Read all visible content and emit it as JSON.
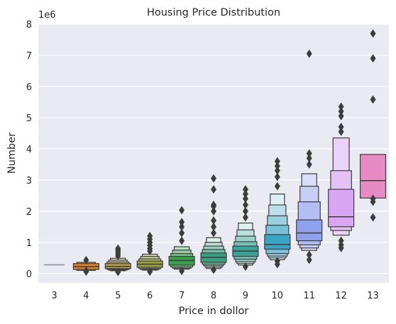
{
  "chart_data": {
    "type": "boxen",
    "title": "Housing Price Distribution",
    "xlabel": "Price in dollor",
    "ylabel": "Number",
    "y_multiplier": "1e6",
    "ylim": [
      -0.3,
      8.0
    ],
    "yticks": [
      0,
      1,
      2,
      3,
      4,
      5,
      6,
      7,
      8
    ],
    "grid": true,
    "background": "#eaeaf2",
    "categories": [
      "3",
      "4",
      "5",
      "6",
      "7",
      "8",
      "9",
      "10",
      "11",
      "12",
      "13"
    ],
    "series": [
      {
        "category": "3",
        "color": "#8c8c8c",
        "median": 0.28,
        "boxes": [],
        "outliers": []
      },
      {
        "category": "4",
        "color": "#e1812c",
        "median": 0.22,
        "boxes": [
          [
            0.13,
            0.32
          ],
          [
            0.1,
            0.36
          ]
        ],
        "outliers": [
          0.43,
          0.09,
          0.06
        ]
      },
      {
        "category": "5",
        "color": "#b8a04a",
        "median": 0.23,
        "boxes": [
          [
            0.16,
            0.32
          ],
          [
            0.13,
            0.37
          ],
          [
            0.11,
            0.43
          ],
          [
            0.09,
            0.49
          ]
        ],
        "outliers": [
          0.56,
          0.62,
          0.68,
          0.74,
          0.8,
          0.05
        ]
      },
      {
        "category": "6",
        "color": "#9aa13b",
        "median": 0.3,
        "boxes": [
          [
            0.2,
            0.4
          ],
          [
            0.16,
            0.47
          ],
          [
            0.13,
            0.55
          ],
          [
            0.11,
            0.62
          ]
        ],
        "outliers": [
          0.72,
          0.8,
          0.9,
          1.0,
          1.1,
          1.2,
          0.06
        ]
      },
      {
        "category": "7",
        "color": "#3a9e4d",
        "median": 0.42,
        "boxes": [
          [
            0.27,
            0.55
          ],
          [
            0.21,
            0.64
          ],
          [
            0.17,
            0.75
          ],
          [
            0.14,
            0.86
          ]
        ],
        "outliers": [
          1.05,
          1.3,
          1.5,
          1.65,
          2.03,
          0.08
        ]
      },
      {
        "category": "8",
        "color": "#3a9f80",
        "median": 0.52,
        "boxes": [
          [
            0.36,
            0.66
          ],
          [
            0.3,
            0.77
          ],
          [
            0.25,
            0.88
          ],
          [
            0.2,
            1.0
          ],
          [
            0.16,
            1.15
          ]
        ],
        "outliers": [
          1.3,
          1.5,
          1.7,
          2.0,
          2.15,
          2.2,
          2.7,
          3.05,
          0.12
        ]
      },
      {
        "category": "9",
        "color": "#3ba29a",
        "median": 0.72,
        "boxes": [
          [
            0.55,
            0.88
          ],
          [
            0.46,
            1.02
          ],
          [
            0.38,
            1.2
          ],
          [
            0.32,
            1.4
          ],
          [
            0.27,
            1.62
          ]
        ],
        "outliers": [
          1.8,
          2.0,
          2.2,
          2.4,
          2.55,
          2.7,
          0.22
        ]
      },
      {
        "category": "10",
        "color": "#3ba3c4",
        "median": 0.93,
        "boxes": [
          [
            0.78,
            1.25
          ],
          [
            0.64,
            1.55
          ],
          [
            0.56,
            1.85
          ],
          [
            0.5,
            2.2
          ],
          [
            0.44,
            2.55
          ]
        ],
        "outliers": [
          2.8,
          3.1,
          3.3,
          3.45,
          3.6,
          0.3,
          0.4
        ]
      },
      {
        "category": "11",
        "color": "#8fa1ec",
        "median": 1.3,
        "boxes": [
          [
            1.05,
            1.72
          ],
          [
            0.92,
            2.3
          ],
          [
            0.82,
            2.8
          ],
          [
            0.74,
            3.2
          ]
        ],
        "outliers": [
          3.5,
          3.7,
          3.85,
          7.05,
          0.44,
          0.6
        ]
      },
      {
        "category": "12",
        "color": "#d8a6f2",
        "median": 1.82,
        "boxes": [
          [
            1.5,
            2.7
          ],
          [
            1.38,
            3.3
          ],
          [
            1.23,
            4.35
          ]
        ],
        "outliers": [
          4.55,
          4.7,
          5.05,
          5.2,
          5.35,
          0.82,
          0.92,
          1.05
        ]
      },
      {
        "category": "13",
        "color": "#e78ac3",
        "median": 2.98,
        "boxes": [
          [
            2.42,
            3.82
          ]
        ],
        "outliers": [
          5.58,
          6.9,
          7.7,
          1.8,
          2.3,
          2.4
        ]
      }
    ]
  }
}
